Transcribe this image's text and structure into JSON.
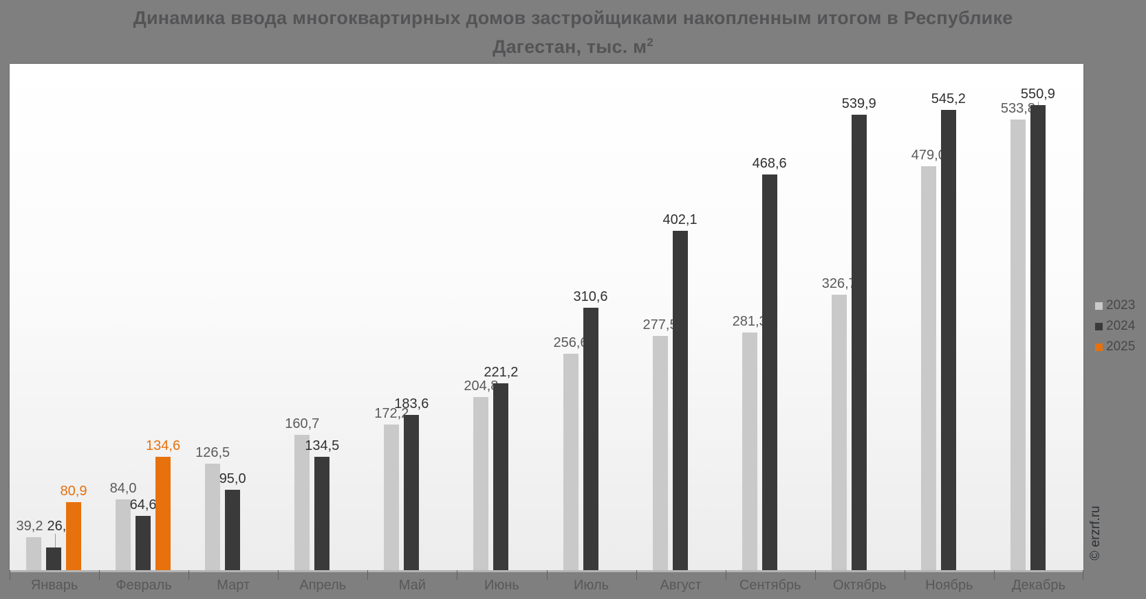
{
  "title": {
    "line1": "Динамика ввода многоквартирных домов застройщиками накопленным итогом в Республике",
    "line2_prefix": "Дагестан, тыс. м",
    "line2_sup": "2"
  },
  "watermark": "© erzrf.ru",
  "colors": {
    "background": "#7f7f7f",
    "plot_top": "#ffffff",
    "plot_bottom": "#ececec",
    "series_2023": "#c9c9c9",
    "series_2024": "#3a3a3a",
    "series_2025": "#e7710d",
    "axis_line": "#b4b4b4",
    "tick": "#5f5f5f",
    "month_label_text": "#585858",
    "title_text": "#545456",
    "legend_text": "#474747",
    "watermark_text": "#2c2f33"
  },
  "legend": {
    "position": "right",
    "items": [
      {
        "label": "2023",
        "color": "#c9c9c9"
      },
      {
        "label": "2024",
        "color": "#3a3a3a"
      },
      {
        "label": "2025",
        "color": "#e7710d"
      }
    ]
  },
  "chart_data": {
    "type": "bar",
    "title": "Динамика ввода многоквартирных домов застройщиками накопленным итогом в Республике Дагестан, тыс. м²",
    "categories": [
      "Январь",
      "Февраль",
      "Март",
      "Апрель",
      "Май",
      "Июнь",
      "Июль",
      "Август",
      "Сентябрь",
      "Октябрь",
      "Ноябрь",
      "Декабрь"
    ],
    "series": [
      {
        "name": "2023",
        "color": "#c9c9c9",
        "label_color": "#5a5a5a",
        "values": [
          39.2,
          84.0,
          126.5,
          160.7,
          172.2,
          204.8,
          256.6,
          277.5,
          281.3,
          326.7,
          479.0,
          533.8
        ]
      },
      {
        "name": "2024",
        "color": "#3a3a3a",
        "label_color": "#303030",
        "values": [
          26.8,
          64.6,
          95.0,
          134.5,
          183.6,
          221.2,
          310.6,
          402.1,
          468.6,
          539.9,
          545.2,
          550.9
        ]
      },
      {
        "name": "2025",
        "color": "#e7710d",
        "label_color": "#e7710d",
        "values": [
          80.9,
          134.6,
          null,
          null,
          null,
          null,
          null,
          null,
          null,
          null,
          null,
          null
        ]
      }
    ],
    "value_format": "decimal_comma_1",
    "data_labels": true,
    "grid": false,
    "ylim": [
      0,
      600
    ],
    "legend_position": "right"
  }
}
